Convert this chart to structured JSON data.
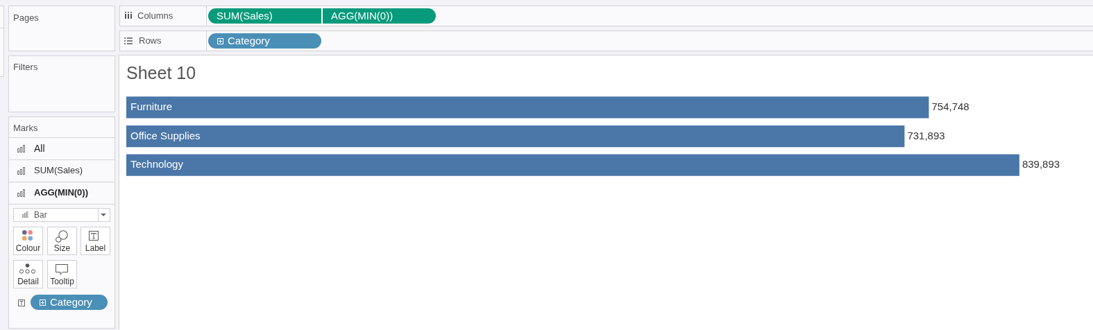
{
  "chart_data": {
    "type": "bar",
    "orientation": "horizontal",
    "title": "Sheet 10",
    "categories": [
      "Furniture",
      "Office Supplies",
      "Technology"
    ],
    "values": [
      754748,
      731893,
      839893
    ],
    "value_labels": [
      "754,748",
      "731,893",
      "839,893"
    ],
    "color": "#4a76a8",
    "tick_labels": "y",
    "annotations": [
      "Pages",
      "Columns",
      "SUM(Sales)",
      "AGG(MIN(0))",
      "Rows",
      "Category",
      "Filters",
      "Marks",
      "All",
      "SUM(Sales)",
      "AGG(MIN(0))",
      "Bar",
      "Colour",
      "Size",
      "Label",
      "Detail",
      "Tooltip",
      "Category"
    ]
  }
}
